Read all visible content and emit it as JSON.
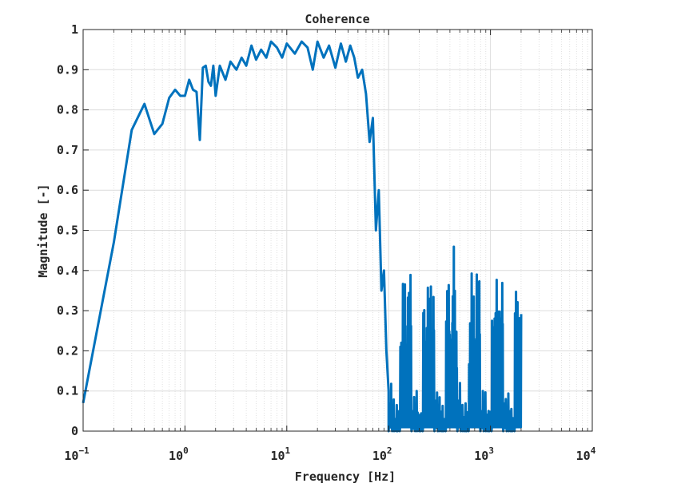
{
  "chart_data": {
    "type": "line",
    "title": "Coherence",
    "xlabel": "Frequency [Hz]",
    "ylabel": "Magnitude [-]",
    "xscale": "log",
    "xlim": [
      0.1,
      10000
    ],
    "ylim": [
      0,
      1
    ],
    "grid": true,
    "minor_grid": true,
    "line_color": "#0072BD",
    "x_tick_labels": [
      {
        "base": "10",
        "exp": "−1"
      },
      {
        "base": "10",
        "exp": "0"
      },
      {
        "base": "10",
        "exp": "1"
      },
      {
        "base": "10",
        "exp": "2"
      },
      {
        "base": "10",
        "exp": "3"
      },
      {
        "base": "10",
        "exp": "4"
      }
    ],
    "y_tick_labels": [
      "0",
      "0.1",
      "0.2",
      "0.3",
      "0.4",
      "0.5",
      "0.6",
      "0.7",
      "0.8",
      "0.9",
      "1"
    ],
    "series": [
      {
        "x": [
          0.1,
          0.2,
          0.3,
          0.4,
          0.5,
          0.6,
          0.7,
          0.8,
          0.9,
          1.0,
          1.1,
          1.2,
          1.3,
          1.4,
          1.5,
          1.6,
          1.7,
          1.8,
          1.9,
          2.0,
          2.2,
          2.5,
          2.8,
          3.2,
          3.6,
          4.0,
          4.5,
          5.0,
          5.6,
          6.3,
          7.0,
          8.0,
          9.0,
          10,
          12,
          14,
          16,
          18,
          20,
          23,
          26,
          30,
          34,
          38,
          42,
          46,
          50,
          55,
          60,
          65,
          70,
          75,
          80,
          85,
          90,
          95,
          100
        ],
        "values": [
          0.07,
          0.47,
          0.75,
          0.815,
          0.74,
          0.765,
          0.83,
          0.85,
          0.835,
          0.835,
          0.875,
          0.85,
          0.845,
          0.725,
          0.905,
          0.91,
          0.87,
          0.86,
          0.91,
          0.835,
          0.91,
          0.875,
          0.92,
          0.9,
          0.93,
          0.91,
          0.96,
          0.925,
          0.95,
          0.93,
          0.97,
          0.955,
          0.93,
          0.965,
          0.94,
          0.97,
          0.955,
          0.9,
          0.97,
          0.93,
          0.96,
          0.905,
          0.965,
          0.92,
          0.96,
          0.93,
          0.88,
          0.9,
          0.84,
          0.72,
          0.78,
          0.5,
          0.6,
          0.35,
          0.4,
          0.2,
          0.1
        ],
        "noise_region": {
          "x_start": 100,
          "x_end": 2000,
          "values": [
            0.0,
            0.3,
            0.05,
            0.25,
            0.02,
            0.35,
            0.08,
            0.28,
            0.01,
            0.22,
            0.12,
            0.4,
            0.03,
            0.3,
            0.0,
            0.33,
            0.06,
            0.25,
            0.02,
            0.38,
            0.1,
            0.29,
            0.0,
            0.24,
            0.05,
            0.3,
            0.01,
            0.35,
            0.04,
            0.27,
            0.0,
            0.46,
            0.07,
            0.3,
            0.02,
            0.38,
            0.0,
            0.28,
            0.05,
            0.32,
            0.01,
            0.39,
            0.03,
            0.27,
            0.0
          ]
        }
      }
    ]
  }
}
